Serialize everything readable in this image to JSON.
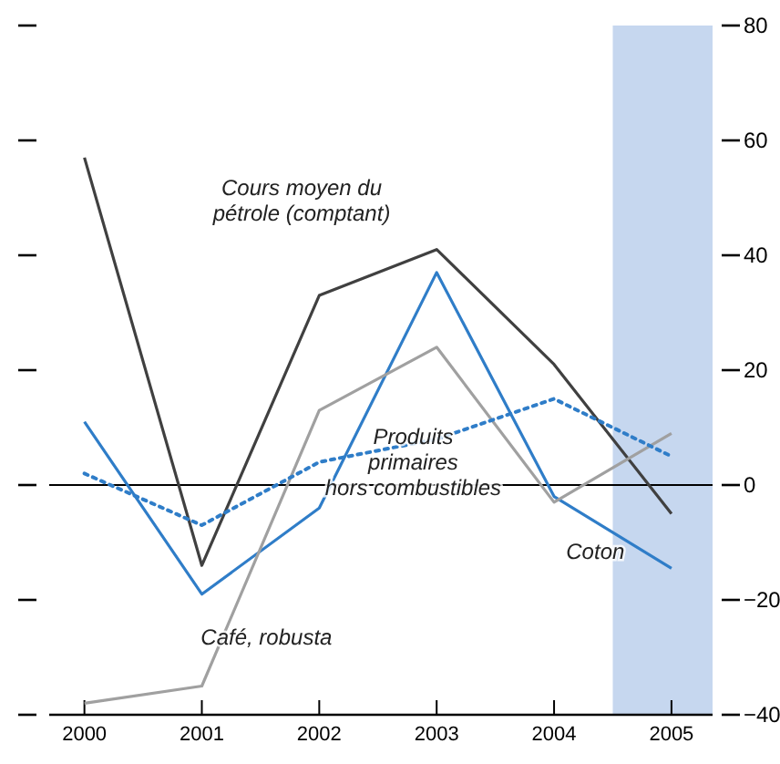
{
  "chart_data": {
    "type": "line",
    "x": [
      2000,
      2001,
      2002,
      2003,
      2004,
      2005
    ],
    "xlim": [
      1999.7,
      2005.35
    ],
    "xticks": [
      2000,
      2001,
      2002,
      2003,
      2004,
      2005
    ],
    "ylim": [
      -40,
      80
    ],
    "yticks": [
      {
        "value": -40,
        "label": "−40"
      },
      {
        "value": -20,
        "label": "−20"
      },
      0,
      20,
      40,
      60,
      80
    ],
    "grid": false,
    "legend": false,
    "marker": "none",
    "series": [
      {
        "name": "Cours moyen du\npétrole (comptant)",
        "color": "#404040",
        "values": [
          57,
          -14,
          33,
          41,
          21,
          -5
        ]
      },
      {
        "name": "Coton",
        "color": "#2f7dc8",
        "values": [
          11,
          -19,
          -4,
          37,
          -2,
          -14.5
        ]
      },
      {
        "name": "Café, robusta",
        "color": "#a0a0a0",
        "values": [
          -38,
          -35,
          13,
          24,
          -3,
          9
        ]
      },
      {
        "name": "Produits\nprimaires\nhors combustibles",
        "color": "#2f7dc8",
        "line_style": "dotted",
        "values": [
          2,
          -7,
          4,
          8,
          15,
          5
        ]
      }
    ],
    "ref_lines": [
      {
        "axis": "y",
        "value": 0,
        "color": "#000000"
      }
    ],
    "bands": [
      {
        "axis": "x",
        "from": 2004.5,
        "to": 2005.35,
        "color": "#c6d7ef"
      }
    ]
  }
}
